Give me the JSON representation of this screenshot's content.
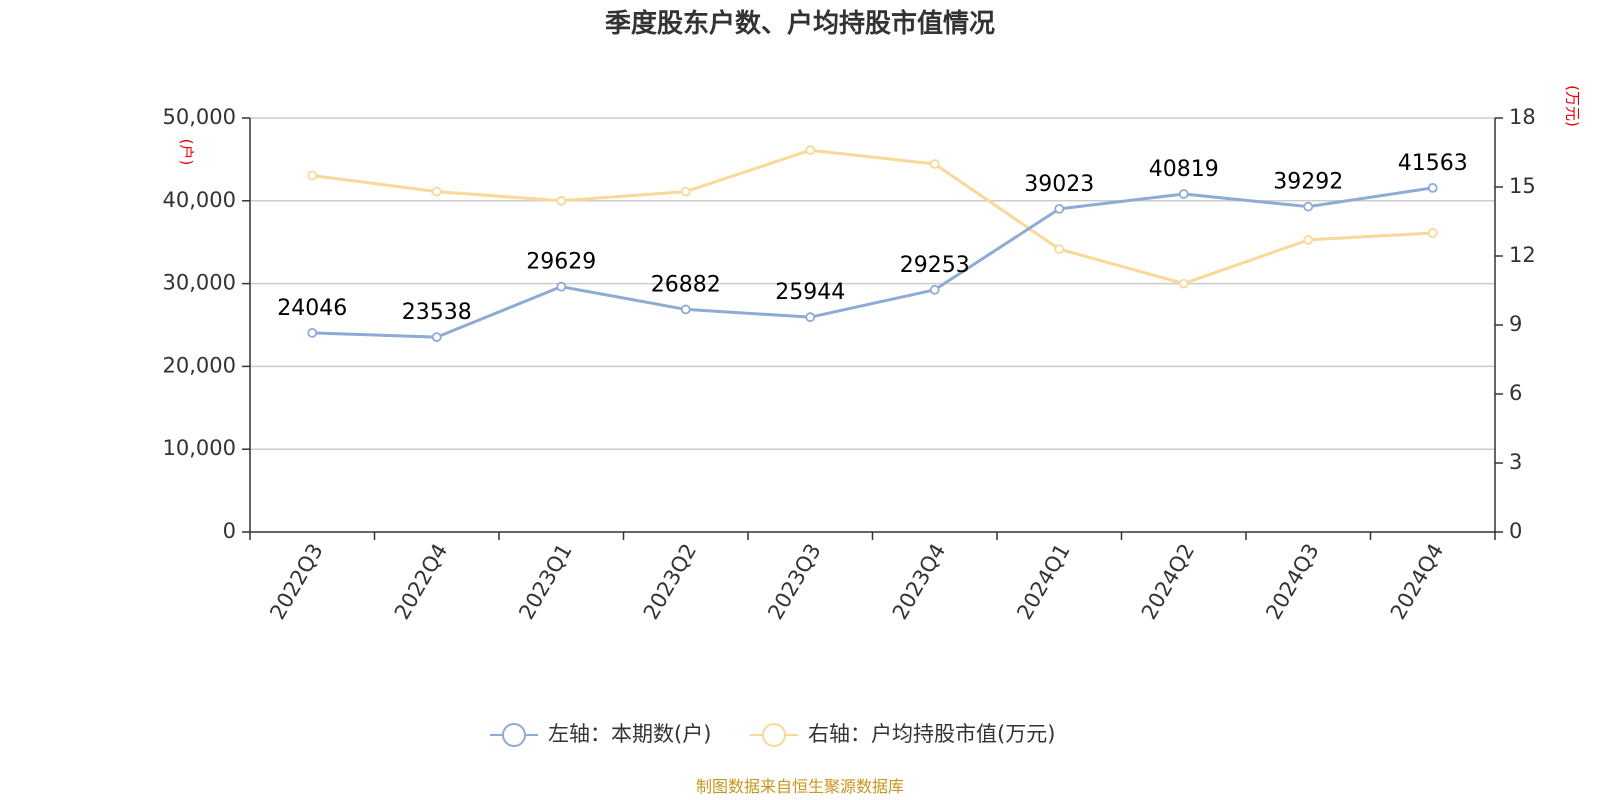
{
  "chart_data": {
    "type": "line",
    "title": "季度股东户数、户均持股市值情况",
    "categories": [
      "2022Q3",
      "2022Q4",
      "2023Q1",
      "2023Q2",
      "2023Q3",
      "2023Q4",
      "2024Q1",
      "2024Q2",
      "2024Q3",
      "2024Q4"
    ],
    "left_axis": {
      "unit": "(户)",
      "ylim": [
        0,
        50000
      ],
      "ticks": [
        "0",
        "10,000",
        "20,000",
        "30,000",
        "40,000",
        "50,000"
      ],
      "tick_values": [
        0,
        10000,
        20000,
        30000,
        40000,
        50000
      ]
    },
    "right_axis": {
      "unit": "(万元)",
      "ylim": [
        0,
        18
      ],
      "ticks": [
        "0",
        "3",
        "6",
        "9",
        "12",
        "15",
        "18"
      ],
      "tick_values": [
        0,
        3,
        6,
        9,
        12,
        15,
        18
      ]
    },
    "series": [
      {
        "name": "左轴：本期数(户)",
        "axis": "left",
        "color": "#8eaad6",
        "values": [
          24046,
          23538,
          29629,
          26882,
          25944,
          29253,
          39023,
          40819,
          39292,
          41563
        ],
        "labels": [
          "24046",
          "23538",
          "29629",
          "26882",
          "25944",
          "29253",
          "39023",
          "40819",
          "39292",
          "41563"
        ]
      },
      {
        "name": "右轴：户均持股市值(万元)",
        "axis": "right",
        "color": "#fad898",
        "values": [
          15.5,
          14.8,
          14.4,
          14.8,
          16.6,
          16.0,
          12.3,
          10.8,
          12.7,
          13.0
        ]
      }
    ],
    "grid": true,
    "legend_position": "bottom"
  },
  "source": "制图数据来自恒生聚源数据库"
}
